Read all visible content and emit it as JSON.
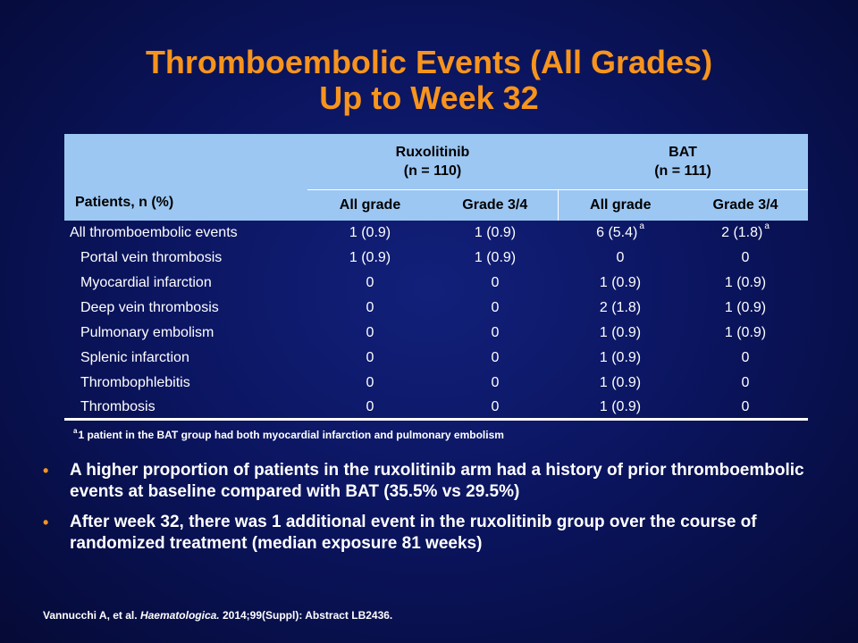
{
  "title": {
    "line1": "Thromboembolic Events (All Grades)",
    "line2": "Up to Week 32"
  },
  "table": {
    "row_header": "Patients, n (%)",
    "groups": [
      {
        "name": "Ruxolitinib",
        "n": "(n = 110)"
      },
      {
        "name": "BAT",
        "n": "(n = 111)"
      }
    ],
    "subheaders": [
      "All grade",
      "Grade 3/4",
      "All grade",
      "Grade 3/4"
    ],
    "rows": [
      {
        "label": "All thromboembolic  events",
        "cells": [
          "1 (0.9)",
          "1 (0.9)",
          "6 (5.4)",
          "2 (1.8)"
        ],
        "marks": [
          "",
          "",
          "a",
          "a"
        ]
      },
      {
        "label": "Portal vein thrombosis",
        "cells": [
          "1 (0.9)",
          "1 (0.9)",
          "0",
          "0"
        ],
        "marks": [
          "",
          "",
          "",
          ""
        ]
      },
      {
        "label": "Myocardial infarction",
        "cells": [
          "0",
          "0",
          "1 (0.9)",
          "1 (0.9)"
        ],
        "marks": [
          "",
          "",
          "",
          ""
        ]
      },
      {
        "label": "Deep vein thrombosis",
        "cells": [
          "0",
          "0",
          "2 (1.8)",
          "1 (0.9)"
        ],
        "marks": [
          "",
          "",
          "",
          ""
        ]
      },
      {
        "label": "Pulmonary  embolism",
        "cells": [
          "0",
          "0",
          "1 (0.9)",
          "1 (0.9)"
        ],
        "marks": [
          "",
          "",
          "",
          ""
        ]
      },
      {
        "label": "Splenic  infarction",
        "cells": [
          "0",
          "0",
          "1 (0.9)",
          "0"
        ],
        "marks": [
          "",
          "",
          "",
          ""
        ]
      },
      {
        "label": "Thrombophlebitis",
        "cells": [
          "0",
          "0",
          "1 (0.9)",
          "0"
        ],
        "marks": [
          "",
          "",
          "",
          ""
        ]
      },
      {
        "label": "Thrombosis",
        "cells": [
          "0",
          "0",
          "1 (0.9)",
          "0"
        ],
        "marks": [
          "",
          "",
          "",
          ""
        ]
      }
    ]
  },
  "footnote": {
    "mark": "a",
    "text": "1 patient in the BAT group had both myocardial infarction and pulmonary embolism"
  },
  "bullets": [
    "A higher proportion of patients in the ruxolitinib arm had a history of prior thromboembolic events at baseline compared with BAT (35.5% vs 29.5%)",
    "After week 32, there was 1 additional event in the ruxolitinib group over the course of randomized treatment (median exposure 81 weeks)"
  ],
  "bullet_glyph": "•",
  "citation": {
    "authors": "Vannucchi A, et al.",
    "journal": "Haematologica.",
    "details": "2014;99(Suppl): Abstract LB2436."
  },
  "colors": {
    "title": "#f7941d",
    "header_fill": "#9cc7f3",
    "background": "#0b1560"
  }
}
